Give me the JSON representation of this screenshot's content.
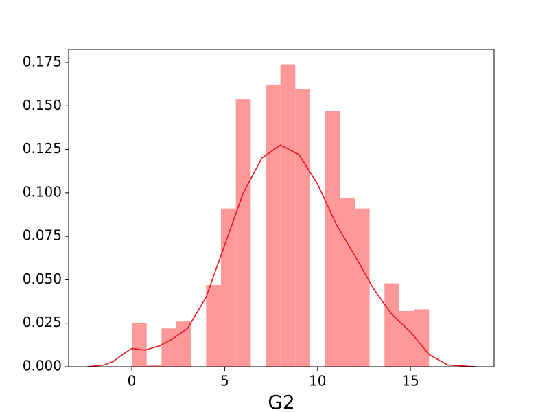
{
  "chart_data": {
    "type": "histogram",
    "xlabel": "G2",
    "bins": [
      0,
      0.8,
      1.6,
      2.4,
      3.2,
      4.0,
      4.8,
      5.6,
      6.4,
      7.2,
      8.0,
      8.8,
      9.6,
      10.4,
      11.2,
      12.0,
      12.8,
      13.6,
      14.4,
      15.2,
      16.0
    ],
    "values": [
      0.025,
      0.001,
      0.022,
      0.026,
      0,
      0.047,
      0.091,
      0.154,
      0,
      0.162,
      0.174,
      0.16,
      0,
      0.147,
      0.097,
      0.091,
      0,
      0.048,
      0.032,
      0.033
    ],
    "color": "#ff9999",
    "kde": {
      "x": [
        -2.4,
        -1.5,
        -1,
        -0.5,
        0,
        0.7,
        1.5,
        2.2,
        3,
        4,
        5,
        6,
        7,
        8,
        9,
        10,
        11,
        12,
        13,
        14,
        15,
        16,
        17,
        18.5
      ],
      "values": [
        0,
        0.001,
        0.003,
        0.007,
        0.0105,
        0.0095,
        0.012,
        0.016,
        0.022,
        0.04,
        0.07,
        0.1,
        0.12,
        0.1275,
        0.122,
        0.105,
        0.082,
        0.064,
        0.045,
        0.03,
        0.02,
        0.007,
        0.001,
        0
      ],
      "color": "#e8141e"
    },
    "xlim": [
      -3.4,
      19.5
    ],
    "xticks": [
      0,
      5,
      10,
      15
    ],
    "ylim": [
      0,
      0.1825
    ],
    "yticks": [
      {
        "value": 0,
        "label": "0.000"
      },
      {
        "value": 0.025,
        "label": "0.025"
      },
      {
        "value": 0.05,
        "label": "0.050"
      },
      {
        "value": 0.075,
        "label": "0.075"
      },
      {
        "value": 0.1,
        "label": "0.100"
      },
      {
        "value": 0.125,
        "label": "0.125"
      },
      {
        "value": 0.15,
        "label": "0.150"
      },
      {
        "value": 0.175,
        "label": "0.175"
      }
    ]
  }
}
